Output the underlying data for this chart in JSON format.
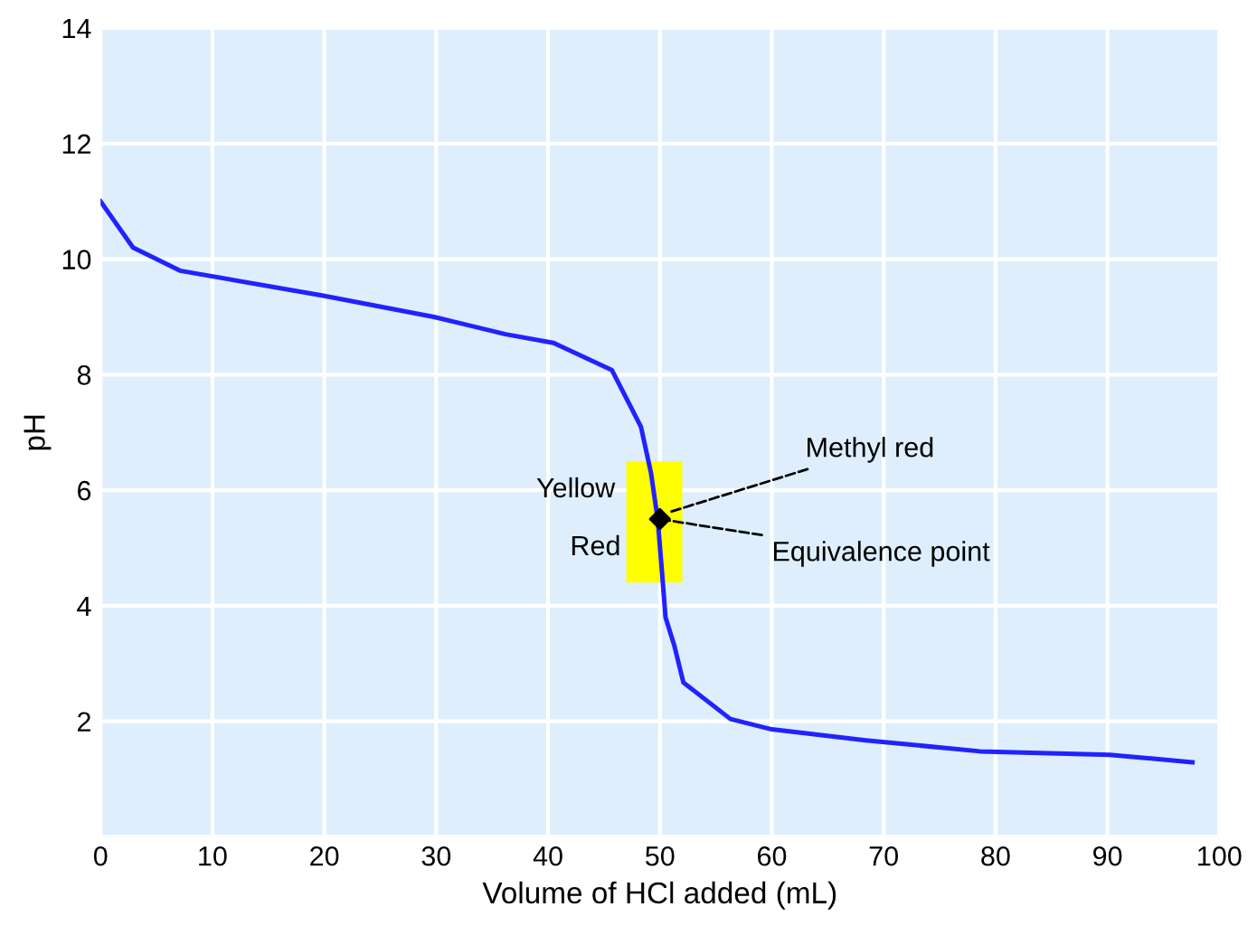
{
  "chart_data": {
    "type": "line",
    "xlabel": "Volume of HCl added (mL)",
    "ylabel": "pH",
    "xlim": [
      0,
      100
    ],
    "ylim": [
      0,
      14
    ],
    "xticks": [
      0,
      10,
      20,
      30,
      40,
      50,
      60,
      70,
      80,
      90,
      100
    ],
    "yticks": [
      {
        "value": 0,
        "label": null
      },
      2,
      4,
      6,
      8,
      10,
      12,
      14
    ],
    "grid": true,
    "series": [
      {
        "type": "bar",
        "color": "#ffff00",
        "x": [
          49.5
        ],
        "base": [
          4.4
        ],
        "values": [
          2.1
        ]
      },
      {
        "color": "#2222ff",
        "x": [
          0,
          2.9,
          7.1,
          19.8,
          29.8,
          36.2,
          40.5,
          45.7,
          48.3,
          49.2,
          49.8,
          50.2,
          50.5,
          51.3,
          52.1,
          56.3,
          60,
          68.4,
          78.6,
          90.2,
          97.6
        ],
        "values": [
          11.0,
          10.2,
          9.8,
          9.37,
          9.0,
          8.7,
          8.55,
          8.08,
          7.1,
          6.3,
          5.5,
          4.55,
          3.8,
          3.3,
          2.67,
          2.04,
          1.86,
          1.67,
          1.48,
          1.42,
          1.29
        ]
      },
      {
        "type": "scatter",
        "color": "#000000",
        "marker": "diamond",
        "x": [
          50
        ],
        "values": [
          5.5
        ]
      }
    ],
    "annotations": [
      {
        "text": "Methyl red",
        "x": 50.5,
        "y": 5.6
      },
      {
        "text": "Equivalence point",
        "x": 50,
        "y": 5.5
      },
      "Yellow",
      "Red"
    ]
  }
}
